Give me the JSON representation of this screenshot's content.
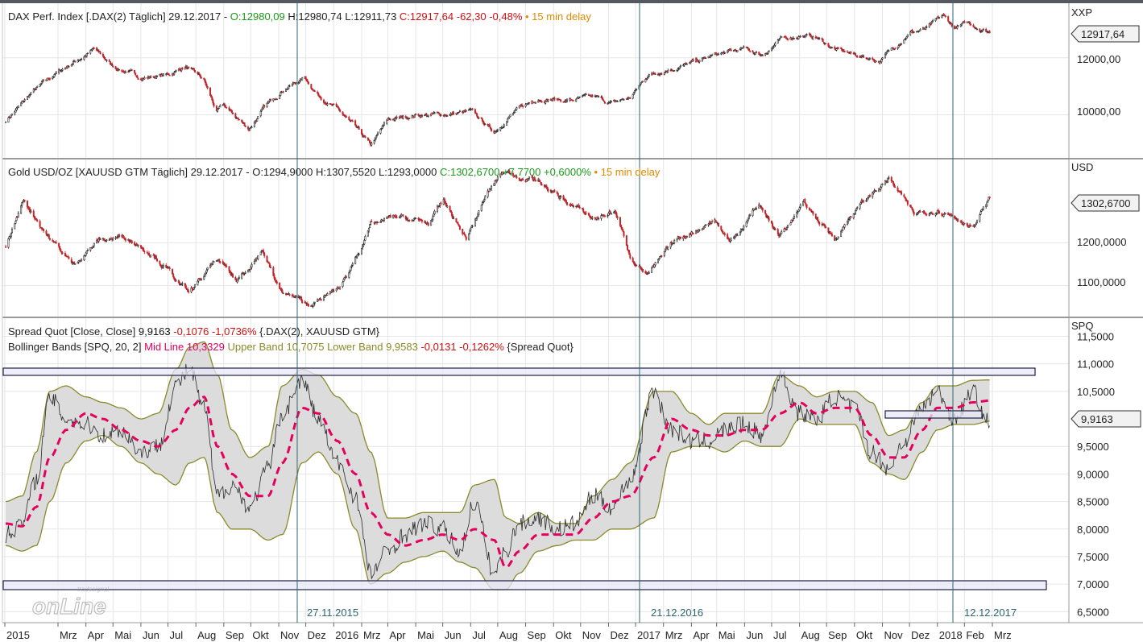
{
  "colors": {
    "up": "#2a2a2a",
    "down": "#c0262a",
    "green_text": "#1a9a1a",
    "red_text": "#d01010",
    "orange_text": "#e08a00",
    "mid_line": "#e4005c",
    "band_line": "#8a8a2a",
    "band_fill": "#dcdcdc",
    "grid": "#e6e6e6",
    "vline": "#2e6670",
    "date_text": "#2e6670",
    "box_fill": "#e8e8f8",
    "box_stroke": "#202040"
  },
  "panels": [
    {
      "id": "dax",
      "unit": "XXP",
      "header": {
        "name": "DAX Perf. Index [.DAX(2) Täglich] 29.12.2017 - ",
        "open": "O:12980,09",
        "hlc": " H:12980,74 L:12911,73 ",
        "close": "C:12917,64 -62,30 -0,48%",
        "delay": " • 15 min delay"
      },
      "ticks": [
        "12000,00",
        "10000,00"
      ],
      "last": "12917,64"
    },
    {
      "id": "gold",
      "unit": "USD",
      "header": {
        "name": "Gold USD/OZ [XAUUSD GTM Täglich] 29.12.2017 - O:1294,9000 H:1307,5520 L:1293,0000 ",
        "close": "C:1302,6700 +7,7700 +0,6000%",
        "delay": " • 15 min delay"
      },
      "ticks": [
        "1200,0000",
        "1100,0000"
      ],
      "last": "1302,6700"
    },
    {
      "id": "spread",
      "unit": "SPQ",
      "header": {
        "line1_name": "Spread Quot [Close, Close] ",
        "line1_value": "9,9163",
        "line1_change": " -0,1076 -1,0736%",
        "line1_args": " {.DAX(2), XAUUSD GTM}",
        "line2_name": "Bollinger Bands [SPQ, 20, 2] ",
        "line2_mid": "Mid Line 10,3329",
        "line2_upper": " Upper Band 10,7075",
        "line2_lower": " Lower Band 9,9583",
        "line2_change": " -0,0131 -0,1262%",
        "line2_args": " {Spread Quot}"
      },
      "ticks": [
        "11,5000",
        "11,0000",
        "10,5000",
        "9,5000",
        "9,0000",
        "8,5000",
        "8,0000",
        "7,5000",
        "7,0000",
        "6,5000"
      ],
      "last": "9,9163"
    }
  ],
  "vline_dates": [
    "27.11.2015",
    "21.12.2016",
    "12.12.2017"
  ],
  "x_axis": [
    "2015",
    "Mrz",
    "Apr",
    "Mai",
    "Jun",
    "Jul",
    "Aug",
    "Sep",
    "Okt",
    "Nov",
    "Dez",
    "2016",
    "Mrz",
    "Apr",
    "Mai",
    "Jun",
    "Jul",
    "Aug",
    "Sep",
    "Okt",
    "Nov",
    "Dez",
    "2017",
    "Mrz",
    "Apr",
    "Mai",
    "Jun",
    "Jul",
    "Aug",
    "Sep",
    "Okt",
    "Nov",
    "Dez",
    "2018",
    "Feb",
    "Mrz"
  ],
  "watermark": {
    "small": "tradesignal",
    "big": "onLine"
  },
  "chart_data": [
    {
      "type": "line",
      "series": [
        {
          "name": "DAX Perf. Index [.DAX(2) Täglich]",
          "style": "candlestick"
        }
      ],
      "x": [
        "2015-01-02",
        "2015-02-01",
        "2015-03-01",
        "2015-04-10",
        "2015-05-01",
        "2015-06-01",
        "2015-07-01",
        "2015-07-20",
        "2015-08-10",
        "2015-08-24",
        "2015-09-01",
        "2015-09-29",
        "2015-10-15",
        "2015-11-05",
        "2015-11-30",
        "2015-12-15",
        "2016-01-01",
        "2016-01-20",
        "2016-02-11",
        "2016-03-01",
        "2016-04-01",
        "2016-05-01",
        "2016-06-01",
        "2016-06-27",
        "2016-07-15",
        "2016-08-15",
        "2016-09-15",
        "2016-10-15",
        "2016-11-05",
        "2016-11-25",
        "2016-12-15",
        "2017-01-05",
        "2017-02-01",
        "2017-03-01",
        "2017-04-01",
        "2017-04-20",
        "2017-05-10",
        "2017-06-01",
        "2017-06-20",
        "2017-07-10",
        "2017-08-01",
        "2017-08-29",
        "2017-09-15",
        "2017-10-01",
        "2017-10-20",
        "2017-11-07",
        "2017-11-20",
        "2017-12-05",
        "2017-12-29"
      ],
      "y": [
        9800,
        10800,
        11500,
        12300,
        11700,
        11300,
        11400,
        11700,
        11200,
        10100,
        10300,
        9500,
        10200,
        10900,
        11300,
        10700,
        10300,
        9700,
        8900,
        9800,
        10000,
        10000,
        10100,
        9400,
        10000,
        10600,
        10500,
        10600,
        10400,
        10600,
        11400,
        11600,
        11800,
        12100,
        12300,
        12100,
        12600,
        12800,
        12700,
        12300,
        12100,
        11900,
        12400,
        12900,
        13000,
        13450,
        13050,
        13200,
        12917.64
      ],
      "ylim": [
        8600,
        13800
      ]
    },
    {
      "type": "line",
      "series": [
        {
          "name": "Gold USD/OZ [XAUUSD GTM Täglich]",
          "style": "candlestick"
        }
      ],
      "x": [
        "2015-01-02",
        "2015-01-22",
        "2015-02-20",
        "2015-03-17",
        "2015-04-15",
        "2015-05-15",
        "2015-06-15",
        "2015-07-24",
        "2015-08-24",
        "2015-09-15",
        "2015-10-14",
        "2015-11-01",
        "2015-12-03",
        "2015-12-17",
        "2016-01-10",
        "2016-02-11",
        "2016-03-10",
        "2016-04-15",
        "2016-05-02",
        "2016-05-27",
        "2016-06-20",
        "2016-07-06",
        "2016-08-15",
        "2016-09-01",
        "2016-10-15",
        "2016-11-08",
        "2016-11-25",
        "2016-12-15",
        "2017-01-15",
        "2017-02-27",
        "2017-03-15",
        "2017-04-17",
        "2017-05-09",
        "2017-06-06",
        "2017-07-10",
        "2017-08-01",
        "2017-09-08",
        "2017-10-06",
        "2017-11-01",
        "2017-12-12",
        "2017-12-29"
      ],
      "y": [
        1190,
        1300,
        1210,
        1150,
        1205,
        1215,
        1175,
        1080,
        1160,
        1110,
        1185,
        1090,
        1055,
        1065,
        1100,
        1240,
        1260,
        1245,
        1295,
        1210,
        1315,
        1365,
        1345,
        1315,
        1255,
        1275,
        1170,
        1125,
        1205,
        1255,
        1200,
        1290,
        1215,
        1290,
        1210,
        1275,
        1350,
        1265,
        1280,
        1240,
        1302.67
      ],
      "ylim": [
        1030,
        1390
      ]
    },
    {
      "type": "line",
      "series": [
        {
          "name": "Spread Quot [Close, Close]",
          "style": "close-line"
        },
        {
          "name": "Bollinger Bands [SPQ, 20, 2]",
          "style": "bands"
        }
      ],
      "x": [
        "2015-01-02",
        "2015-01-20",
        "2015-02-05",
        "2015-02-20",
        "2015-03-10",
        "2015-04-01",
        "2015-04-20",
        "2015-05-10",
        "2015-06-01",
        "2015-06-20",
        "2015-07-10",
        "2015-07-25",
        "2015-08-10",
        "2015-08-25",
        "2015-09-10",
        "2015-09-30",
        "2015-10-20",
        "2015-11-05",
        "2015-11-27",
        "2015-12-15",
        "2016-01-05",
        "2016-01-25",
        "2016-02-11",
        "2016-03-01",
        "2016-03-20",
        "2016-04-10",
        "2016-05-01",
        "2016-05-20",
        "2016-06-05",
        "2016-06-27",
        "2016-07-10",
        "2016-07-25",
        "2016-08-15",
        "2016-09-05",
        "2016-09-25",
        "2016-10-15",
        "2016-11-05",
        "2016-11-25",
        "2016-12-21",
        "2017-01-10",
        "2017-02-01",
        "2017-02-20",
        "2017-03-10",
        "2017-04-01",
        "2017-04-20",
        "2017-05-10",
        "2017-06-01",
        "2017-06-20",
        "2017-07-10",
        "2017-08-01",
        "2017-08-20",
        "2017-09-08",
        "2017-09-25",
        "2017-10-15",
        "2017-11-01",
        "2017-11-20",
        "2017-12-10",
        "2017-12-29"
      ],
      "y": [
        7.9,
        8.1,
        8.9,
        10.4,
        10.0,
        9.9,
        9.7,
        9.8,
        9.4,
        9.5,
        10.6,
        10.9,
        10.2,
        8.6,
        8.8,
        8.4,
        9.1,
        10.1,
        10.7,
        10.0,
        9.2,
        8.6,
        7.2,
        7.6,
        7.9,
        8.1,
        8.0,
        7.6,
        8.5,
        7.2,
        7.6,
        8.1,
        8.2,
        8.0,
        8.1,
        8.6,
        8.4,
        8.9,
        10.5,
        9.8,
        9.6,
        9.6,
        9.8,
        9.9,
        9.7,
        10.8,
        10.1,
        10.0,
        10.4,
        10.2,
        9.4,
        9.1,
        9.6,
        10.2,
        10.5,
        10.0,
        10.5,
        9.9163
      ],
      "bb_mid": [
        8.1,
        8.05,
        8.4,
        9.3,
        9.8,
        10.1,
        10.0,
        9.8,
        9.6,
        9.5,
        9.8,
        10.2,
        10.4,
        9.5,
        9.0,
        8.6,
        8.6,
        9.2,
        10.2,
        10.1,
        9.6,
        9.0,
        8.3,
        7.9,
        7.7,
        7.8,
        7.9,
        7.8,
        8.0,
        7.8,
        7.3,
        7.6,
        7.9,
        7.9,
        7.9,
        8.2,
        8.5,
        8.6,
        9.3,
        10.0,
        9.8,
        9.7,
        9.7,
        9.8,
        9.8,
        10.1,
        10.3,
        10.1,
        10.2,
        10.2,
        9.7,
        9.3,
        9.3,
        9.8,
        10.2,
        10.2,
        10.3,
        10.3329
      ],
      "bb_upper": [
        8.5,
        8.6,
        9.4,
        10.5,
        10.6,
        10.4,
        10.3,
        10.2,
        10.0,
        10.1,
        10.9,
        11.3,
        11.4,
        10.8,
        9.8,
        9.3,
        9.5,
        10.6,
        10.9,
        10.8,
        10.4,
        10.1,
        9.4,
        8.2,
        8.2,
        8.3,
        8.3,
        8.3,
        8.8,
        8.9,
        8.2,
        8.1,
        8.3,
        8.1,
        8.1,
        8.6,
        8.9,
        9.2,
        10.5,
        10.5,
        10.1,
        9.9,
        10.1,
        10.1,
        10.1,
        10.8,
        10.6,
        10.4,
        10.5,
        10.5,
        10.3,
        9.7,
        9.8,
        10.3,
        10.6,
        10.6,
        10.7,
        10.7075
      ],
      "bb_lower": [
        7.7,
        7.6,
        7.7,
        8.5,
        9.2,
        9.6,
        9.7,
        9.5,
        9.2,
        9.0,
        8.8,
        9.2,
        9.3,
        8.3,
        8.0,
        8.0,
        7.8,
        7.9,
        9.2,
        9.4,
        9.0,
        8.0,
        7.0,
        7.2,
        7.4,
        7.5,
        7.6,
        7.4,
        7.3,
        6.9,
        6.9,
        7.2,
        7.6,
        7.7,
        7.8,
        7.8,
        8.0,
        8.0,
        8.2,
        9.4,
        9.5,
        9.5,
        9.4,
        9.6,
        9.5,
        9.5,
        10.0,
        9.9,
        9.9,
        9.9,
        9.2,
        9.0,
        8.9,
        9.4,
        9.8,
        9.9,
        9.9,
        9.9583
      ],
      "ylim": [
        6.3,
        11.8
      ]
    }
  ]
}
